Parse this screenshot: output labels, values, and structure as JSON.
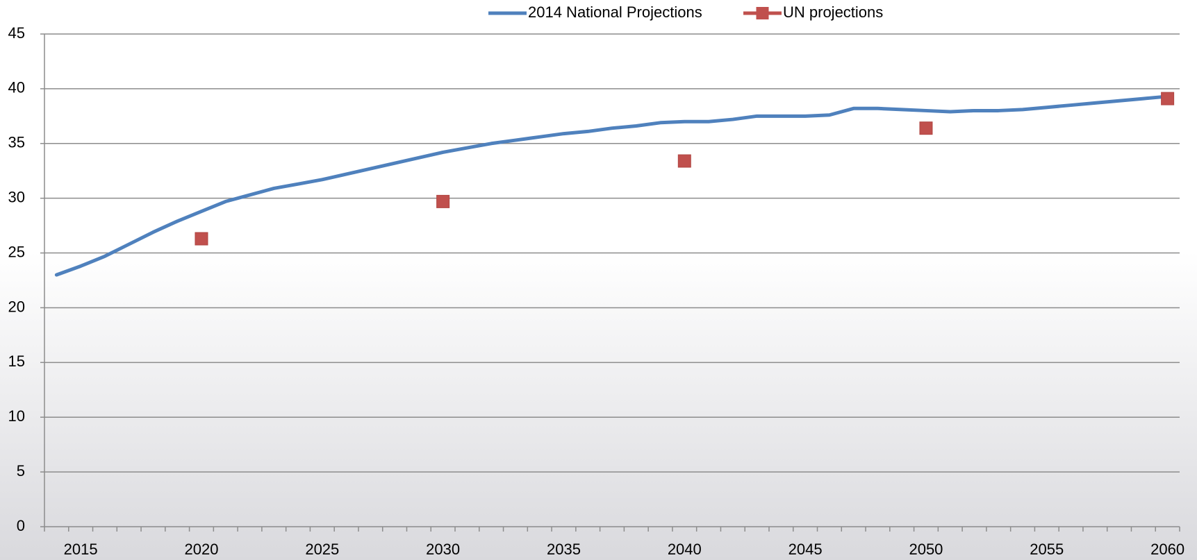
{
  "chart_data": {
    "type": "line",
    "categories": [
      null,
      "2015",
      null,
      null,
      null,
      null,
      "2020",
      null,
      null,
      null,
      null,
      "2025",
      null,
      null,
      null,
      null,
      "2030",
      null,
      null,
      null,
      null,
      "2035",
      null,
      null,
      null,
      null,
      "2040",
      null,
      null,
      null,
      null,
      "2045",
      null,
      null,
      null,
      null,
      "2050",
      null,
      null,
      null,
      null,
      "2055",
      null,
      null,
      null,
      null,
      "2060"
    ],
    "series": [
      {
        "name": "2014 National Projections",
        "color": "#4f81bd",
        "marker": "none",
        "values": [
          23.0,
          23.8,
          24.7,
          25.8,
          26.9,
          27.9,
          28.8,
          29.7,
          30.3,
          30.9,
          31.3,
          31.7,
          32.2,
          32.7,
          33.2,
          33.7,
          34.2,
          34.6,
          35.0,
          35.3,
          35.6,
          35.9,
          36.1,
          36.4,
          36.6,
          36.9,
          37.0,
          37.0,
          37.2,
          37.5,
          37.5,
          37.5,
          37.6,
          38.2,
          38.2,
          38.1,
          38.0,
          37.9,
          38.0,
          38.0,
          38.1,
          38.3,
          38.5,
          38.7,
          38.9,
          39.1,
          39.3
        ]
      },
      {
        "name": "UN projections",
        "color": "#c0504d",
        "marker": "square",
        "values": [
          null,
          null,
          null,
          null,
          null,
          null,
          26.3,
          null,
          null,
          null,
          null,
          null,
          null,
          null,
          null,
          null,
          29.7,
          null,
          null,
          null,
          null,
          null,
          null,
          null,
          null,
          null,
          33.4,
          null,
          null,
          null,
          null,
          null,
          null,
          null,
          null,
          null,
          36.4,
          null,
          null,
          null,
          null,
          null,
          null,
          null,
          null,
          null,
          39.1
        ]
      }
    ],
    "ylim": [
      0,
      45
    ],
    "yticks": [
      0,
      5,
      10,
      15,
      20,
      25,
      30,
      35,
      40,
      45
    ],
    "grid": true,
    "legend": "top"
  }
}
